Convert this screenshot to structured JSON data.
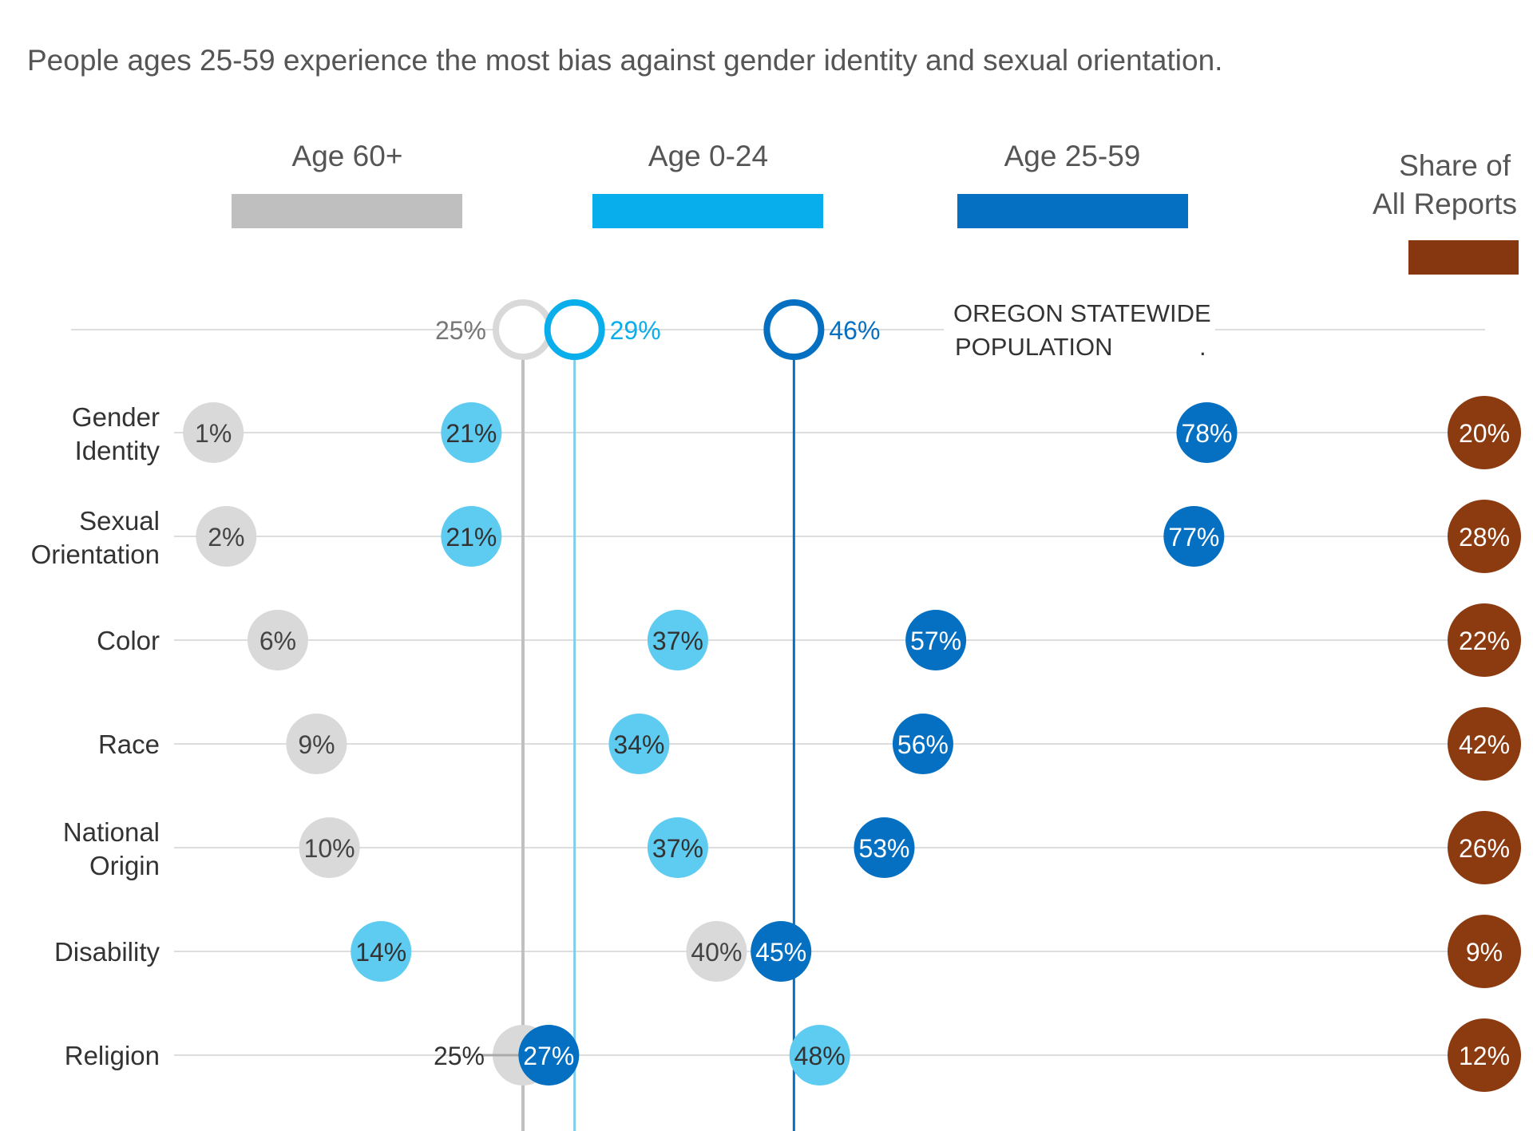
{
  "chart_data": {
    "type": "scatter",
    "title": "People ages 25-59 experience the most bias against gender identity and sexual orientation.",
    "legend": {
      "placement": "top",
      "entries": [
        {
          "key": "age60",
          "label": "Age 60+",
          "color": "#bfbfbf"
        },
        {
          "key": "age0_24",
          "label": "Age 0-24",
          "color": "#08aeeb"
        },
        {
          "key": "age25_59",
          "label": "Age 25-59",
          "color": "#0570c1"
        }
      ],
      "share_label_line1": "Share of",
      "share_label_line2": "All Reports",
      "share_color": "#863710"
    },
    "population": {
      "label_line1": "OREGON STATEWIDE",
      "label_line2": "POPULATION",
      "label_mark": ".",
      "values": {
        "age60": 25,
        "age0_24": 29,
        "age25_59": 46
      }
    },
    "categories": [
      "Gender Identity",
      "Sexual Orientation",
      "Color",
      "Race",
      "National Origin",
      "Disability",
      "Religion"
    ],
    "category_lines": [
      [
        "Gender",
        "Identity"
      ],
      [
        "Sexual",
        "Orientation"
      ],
      [
        "Color"
      ],
      [
        "Race"
      ],
      [
        "National",
        "Origin"
      ],
      [
        "Disability"
      ],
      [
        "Religion"
      ]
    ],
    "series": [
      {
        "key": "age60",
        "name": "Age 60+",
        "values": [
          1,
          2,
          6,
          9,
          10,
          40,
          25
        ]
      },
      {
        "key": "age0_24",
        "name": "Age 0-24",
        "values": [
          21,
          21,
          37,
          34,
          37,
          14,
          48
        ]
      },
      {
        "key": "age25_59",
        "name": "Age 25-59",
        "values": [
          78,
          77,
          57,
          56,
          53,
          45,
          27
        ]
      }
    ],
    "share_of_all_reports": [
      20,
      28,
      22,
      42,
      26,
      9,
      12
    ],
    "unit": "%",
    "grid": false
  }
}
